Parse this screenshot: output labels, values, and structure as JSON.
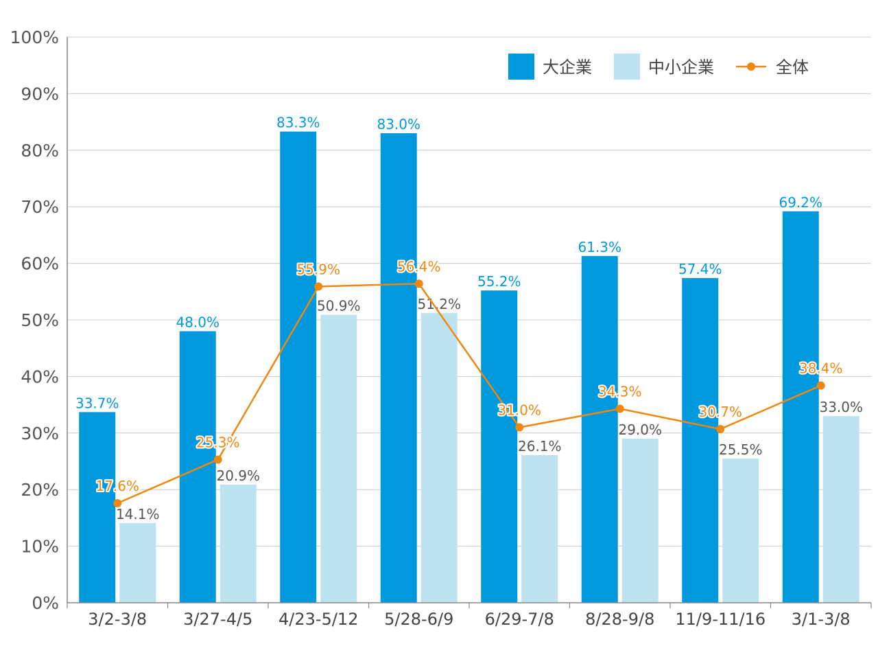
{
  "chart_data": {
    "type": "bar",
    "categories": [
      "3/2-3/8",
      "3/27-4/5",
      "4/23-5/12",
      "5/28-6/9",
      "6/29-7/8",
      "8/28-9/8",
      "11/9-11/16",
      "3/1-3/8"
    ],
    "series": [
      {
        "name": "大企業",
        "kind": "bar",
        "color": "#0099dd",
        "label_color": "#0099dd",
        "values": [
          33.7,
          48.0,
          83.3,
          83.0,
          55.2,
          61.3,
          57.4,
          69.2
        ],
        "labels": [
          "33.7%",
          "48.0%",
          "83.3%",
          "83.0%",
          "55.2%",
          "61.3%",
          "57.4%",
          "69.2%"
        ]
      },
      {
        "name": "中小企業",
        "kind": "bar",
        "color": "#bde3f0",
        "label_color": "#555555",
        "values": [
          14.1,
          20.9,
          50.9,
          51.2,
          26.1,
          29.0,
          25.5,
          33.0
        ],
        "labels": [
          "14.1%",
          "20.9%",
          "50.9%",
          "51.2%",
          "26.1%",
          "29.0%",
          "25.5%",
          "33.0%"
        ]
      },
      {
        "name": "全体",
        "kind": "line",
        "color": "#ee8811",
        "label_color": "#ee8811",
        "values": [
          17.6,
          25.3,
          55.9,
          56.4,
          31.0,
          34.3,
          30.7,
          38.4
        ],
        "labels": [
          "17.6%",
          "25.3%",
          "55.9%",
          "56.4%",
          "31.0%",
          "34.3%",
          "30.7%",
          "38.4%"
        ]
      }
    ],
    "ylim": [
      0,
      100
    ],
    "yticks": [
      0,
      10,
      20,
      30,
      40,
      50,
      60,
      70,
      80,
      90,
      100
    ],
    "ytick_labels": [
      "0%",
      "10%",
      "20%",
      "30%",
      "40%",
      "50%",
      "60%",
      "70%",
      "80%",
      "90%",
      "100%"
    ],
    "grid": true,
    "legend_position": "top-right",
    "axis_color": "#888888",
    "grid_color": "#cccccc"
  }
}
